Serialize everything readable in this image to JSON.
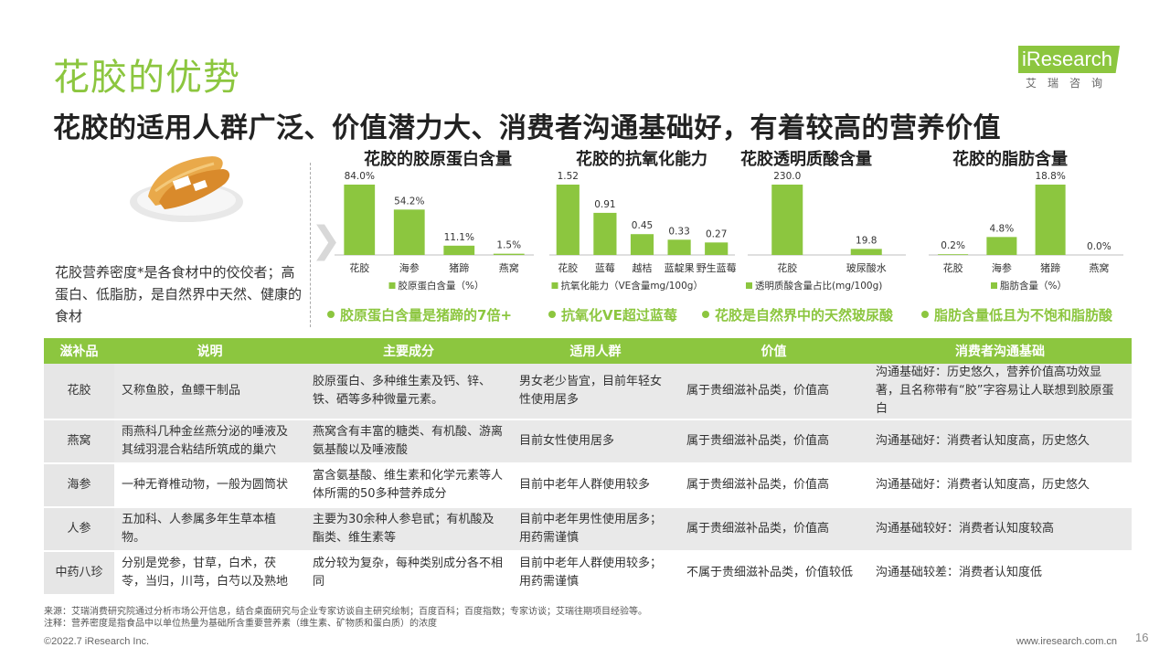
{
  "header": {
    "title": "花胶的优势",
    "subtitle": "花胶的适用人群广泛、价值潜力大、消费者沟通基础好，有着较高的营养价值"
  },
  "brand": {
    "logo_text": "iResearch",
    "logo_cn": "艾瑞咨询",
    "accent_color": "#8cc63f"
  },
  "intro": {
    "text": "花胶营养密度*是各食材中的佼佼者；高蛋白、低脂肪，是自然界中天然、健康的食材"
  },
  "chart_data": [
    {
      "type": "bar",
      "title": "花胶的胶原蛋白含量",
      "categories": [
        "花胶",
        "海参",
        "猪蹄",
        "燕窝"
      ],
      "series": [
        {
          "name": "胶原蛋白含量（%）",
          "values": [
            84.0,
            54.2,
            11.1,
            1.5
          ]
        }
      ],
      "value_labels": [
        "84.0%",
        "54.2%",
        "11.1%",
        "1.5%"
      ],
      "ylim": [
        0,
        84.0
      ]
    },
    {
      "type": "bar",
      "title": "花胶的抗氧化能力",
      "categories": [
        "花胶",
        "蓝莓",
        "越桔",
        "蓝靛果",
        "野生蓝莓"
      ],
      "series": [
        {
          "name": "抗氧化能力（VE含量mg/100g）",
          "values": [
            1.52,
            0.91,
            0.45,
            0.33,
            0.27
          ]
        }
      ],
      "value_labels": [
        "1.52",
        "0.91",
        "0.45",
        "0.33",
        "0.27"
      ],
      "ylim": [
        0,
        1.52
      ]
    },
    {
      "type": "bar",
      "title": "花胶透明质酸含量",
      "categories": [
        "花胶",
        "玻尿酸水"
      ],
      "series": [
        {
          "name": "透明质酸含量占比(mg/100g)",
          "values": [
            230.0,
            19.8
          ]
        }
      ],
      "value_labels": [
        "230.0",
        "19.8"
      ],
      "ylim": [
        0,
        230.0
      ]
    },
    {
      "type": "bar",
      "title": "花胶的脂肪含量",
      "categories": [
        "花胶",
        "海参",
        "猪蹄",
        "燕窝"
      ],
      "series": [
        {
          "name": "脂肪含量（%）",
          "values": [
            0.2,
            4.8,
            18.8,
            0.0
          ]
        }
      ],
      "value_labels": [
        "0.2%",
        "4.8%",
        "18.8%",
        "0.0%"
      ],
      "ylim": [
        0,
        18.8
      ]
    }
  ],
  "findings": [
    "胶原蛋白含量是猪蹄的7倍+",
    "抗氧化VE超过蓝莓",
    "花胶是自然界中的天然玻尿酸",
    "脂肪含量低且为不饱和脂肪酸"
  ],
  "table": {
    "headers": [
      "滋补品",
      "说明",
      "主要成分",
      "适用人群",
      "价值",
      "消费者沟通基础"
    ],
    "rows": [
      [
        "花胶",
        "又称鱼胶，鱼鳔干制品",
        "胶原蛋白、多种维生素及钙、锌、铁、硒等多种微量元素。",
        "男女老少皆宜，目前年轻女性使用居多",
        "属于贵细滋补品类，价值高",
        "沟通基础好：历史悠久，营养价值高功效显著，且名称带有“胶”字容易让人联想到胶原蛋白"
      ],
      [
        "燕窝",
        "雨燕科几种金丝燕分泌的唾液及其绒羽混合粘结所筑成的巢穴",
        "燕窝含有丰富的糖类、有机酸、游离氨基酸以及唾液酸",
        "目前女性使用居多",
        "属于贵细滋补品类，价值高",
        "沟通基础好：消费者认知度高，历史悠久"
      ],
      [
        "海参",
        "一种无脊椎动物，一般为圆筒状",
        "富含氨基酸、维生素和化学元素等人体所需的50多种营养成分",
        "目前中老年人群使用较多",
        "属于贵细滋补品类，价值高",
        "沟通基础好：消费者认知度高，历史悠久"
      ],
      [
        "人参",
        "五加科、人参属多年生草本植物。",
        "主要为30余种人参皂甙；有机酸及酯类、维生素等",
        "目前中老年男性使用居多；用药需谨慎",
        "属于贵细滋补品类，价值高",
        "沟通基础较好：消费者认知度较高"
      ],
      [
        "中药八珍",
        "分别是党参，甘草，白术，茯苓，当归，川芎，白芍以及熟地",
        "成分较为复杂，每种类别成分各不相同",
        "目前中老年人群使用较多；用药需谨慎",
        "不属于贵细滋补品类，价值较低",
        "沟通基础较差：消费者认知度低"
      ]
    ]
  },
  "footer": {
    "source": "来源：艾瑞消费研究院通过分析市场公开信息，结合桌面研究与企业专家访谈自主研究绘制；百度百科；百度指数；专家访谈；艾瑞往期项目经验等。",
    "note": "注释：营养密度是指食品中以单位热量为基础所含重要营养素（维生素、矿物质和蛋白质）的浓度",
    "copyright": "©2022.7 iResearch Inc.",
    "website": "www.iresearch.com.cn",
    "page_number": "16"
  }
}
